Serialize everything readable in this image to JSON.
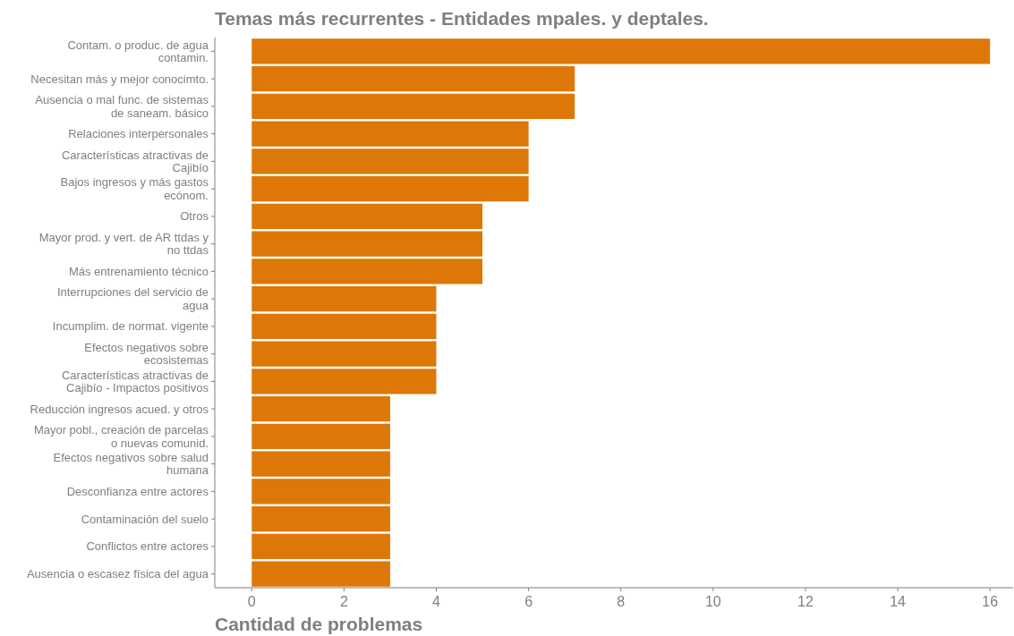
{
  "chart_data": {
    "type": "bar",
    "orientation": "horizontal",
    "title": "Temas más recurrentes - Entidades mpales. y deptales.",
    "xlabel": "Cantidad de problemas",
    "categories": [
      "Contam. o produc. de agua\ncontamin.",
      "Necesitan más y mejor conocimto.",
      "Ausencia o mal func. de sistemas\nde saneam. básico",
      "Relaciones interpersonales",
      "Características atractivas de\nCajibío",
      "Bajos ingresos y más gastos\necónom.",
      "Otros",
      "Mayor prod. y vert. de AR ttdas y\nno ttdas",
      "Más entrenamiento técnico",
      "Interrupciones del servicio de\nagua",
      "Incumplim. de normat. vigente",
      "Efectos negativos sobre\necosistemas",
      "Características atractivas de\nCajibío - Impactos positivos",
      "Reducción ingresos acued. y otros",
      "Mayor pobl., creación de parcelas\no nuevas comunid.",
      "Efectos negativos sobre salud\nhumana",
      "Desconfianza entre actores",
      "Contaminación del suelo",
      "Conflictos entre actores",
      "Ausencia o escasez física del agua"
    ],
    "values": [
      16,
      7,
      7,
      6,
      6,
      6,
      5,
      5,
      5,
      4,
      4,
      4,
      4,
      3,
      3,
      3,
      3,
      3,
      3,
      3
    ],
    "color": "#dd7808",
    "xlim": [
      -0.8,
      16.5
    ],
    "xticks": [
      0,
      2,
      4,
      6,
      8,
      10,
      12,
      14,
      16
    ],
    "grid": false
  }
}
